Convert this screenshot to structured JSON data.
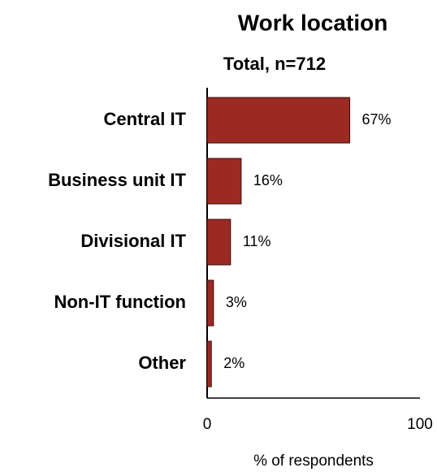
{
  "chart_data": {
    "type": "bar",
    "orientation": "horizontal",
    "title": "Work location",
    "subtitle": "Total, n=712",
    "categories": [
      "Central IT",
      "Business unit IT",
      "Divisional IT",
      "Non-IT function",
      "Other"
    ],
    "values": [
      67,
      16,
      11,
      3,
      2
    ],
    "value_labels": [
      "67%",
      "16%",
      "11%",
      "3%",
      "2%"
    ],
    "color": "#9b2a25",
    "xlim": [
      0,
      100
    ],
    "xticks": [
      0,
      100
    ],
    "xlabel": "% of respondents"
  }
}
